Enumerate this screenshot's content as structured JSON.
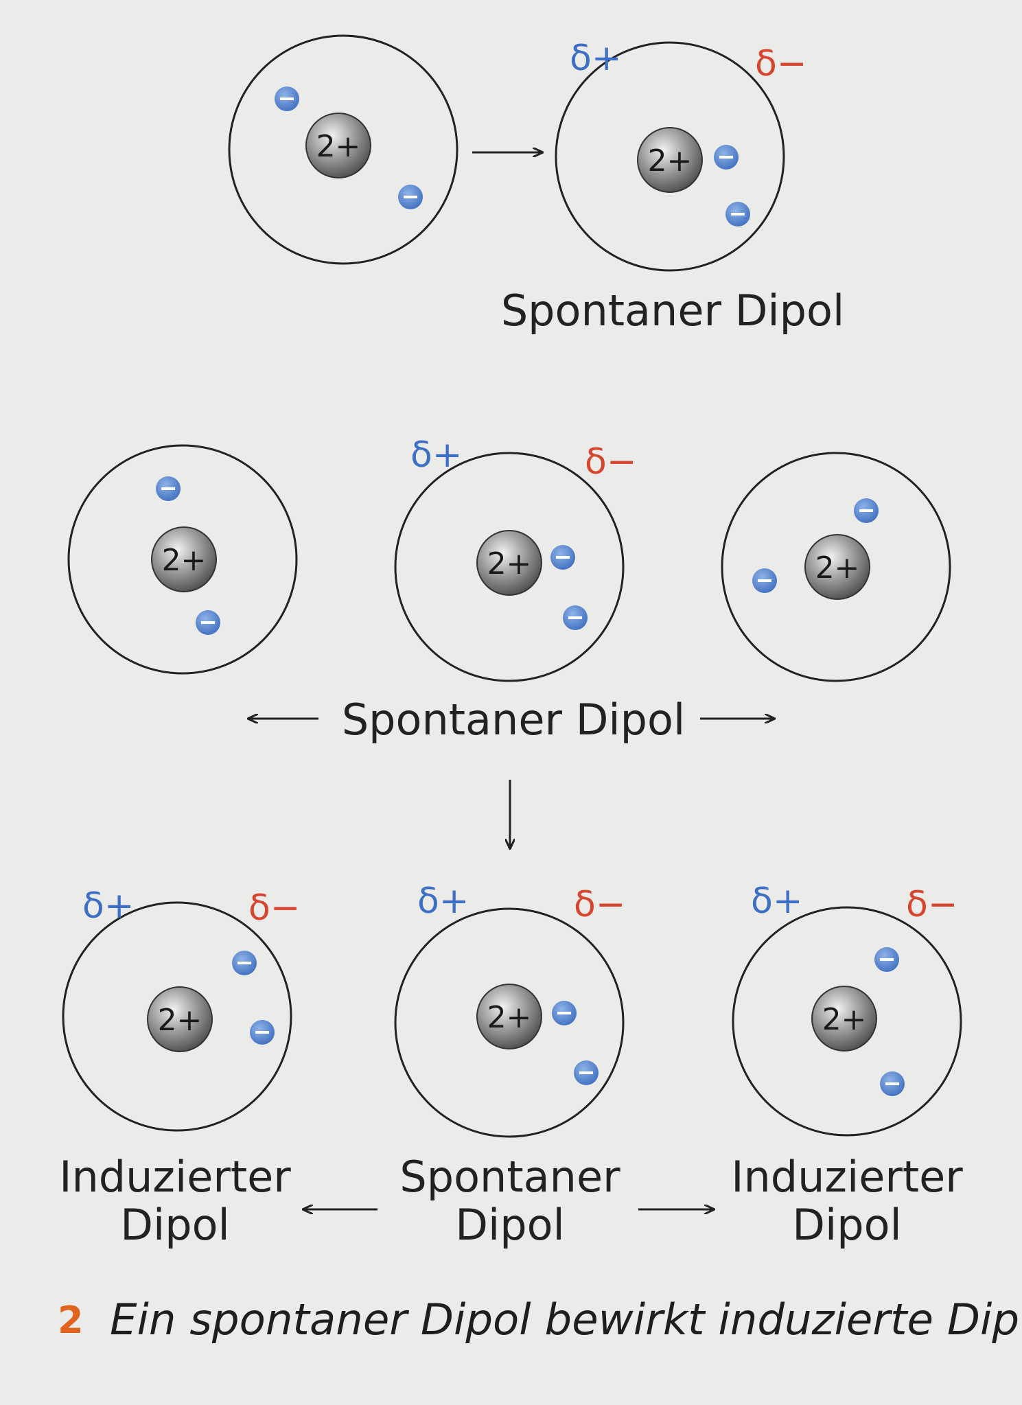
{
  "nucleus_label": "2+",
  "delta_plus": "δ+",
  "delta_minus": "δ−",
  "labels": {
    "top_spontaneous": "Spontaner Dipol",
    "mid_spontaneous": "Spontaner Dipol",
    "bottom_left_line1": "Induzierter",
    "bottom_left_line2": "Dipol",
    "bottom_center_line1": "Spontaner",
    "bottom_center_line2": "Dipol",
    "bottom_right_line1": "Induzierter",
    "bottom_right_line2": "Dipol"
  },
  "caption": {
    "number": "2",
    "text": "Ein spontaner Dipol bewirkt induzierte Dip"
  },
  "colors": {
    "background": "#ebebe9",
    "electron": "#4f7fca",
    "delta_plus": "#3d6fc4",
    "delta_minus": "#d6452e",
    "caption_number": "#e0641e"
  }
}
